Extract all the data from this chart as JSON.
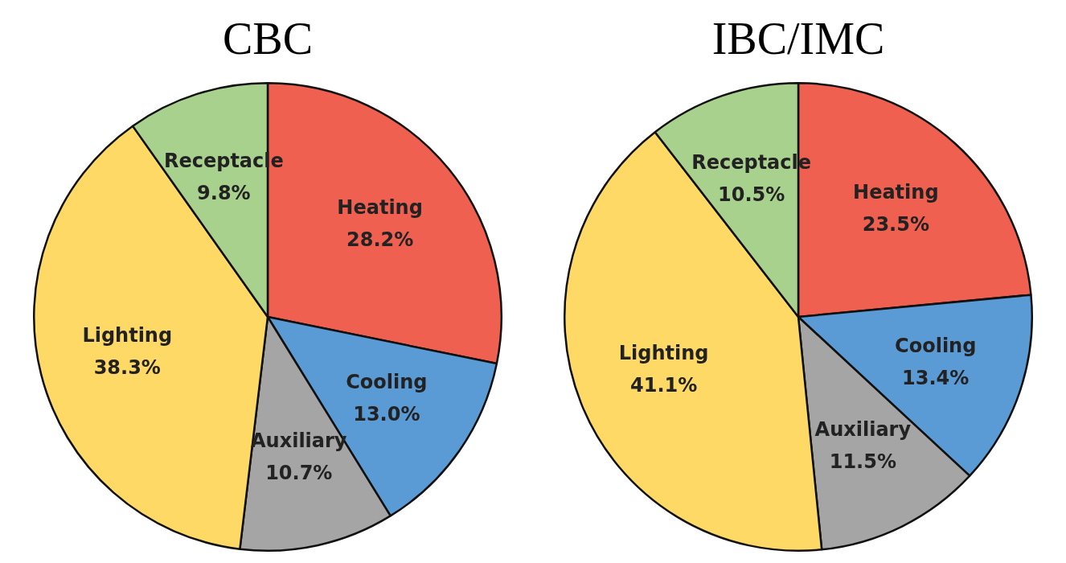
{
  "chart_data": [
    {
      "type": "pie",
      "title": "CBC",
      "categories": [
        "Heating",
        "Cooling",
        "Auxiliary",
        "Lighting",
        "Receptacle"
      ],
      "values": [
        28.2,
        13.0,
        10.7,
        38.3,
        9.8
      ],
      "colors": [
        "#f06050",
        "#5b9bd5",
        "#a5a5a5",
        "#ffd966",
        "#a9d18e"
      ],
      "value_labels": [
        "28.2%",
        "13.0%",
        "10.7%",
        "38.3%",
        "9.8%"
      ],
      "legend": false
    },
    {
      "type": "pie",
      "title": "IBC/IMC",
      "categories": [
        "Heating",
        "Cooling",
        "Auxiliary",
        "Lighting",
        "Receptacle"
      ],
      "values": [
        23.5,
        13.4,
        11.5,
        41.1,
        10.5
      ],
      "colors": [
        "#f06050",
        "#5b9bd5",
        "#a5a5a5",
        "#ffd966",
        "#a9d18e"
      ],
      "value_labels": [
        "23.5%",
        "13.4%",
        "11.5%",
        "41.1%",
        "10.5%"
      ],
      "legend": false
    }
  ]
}
